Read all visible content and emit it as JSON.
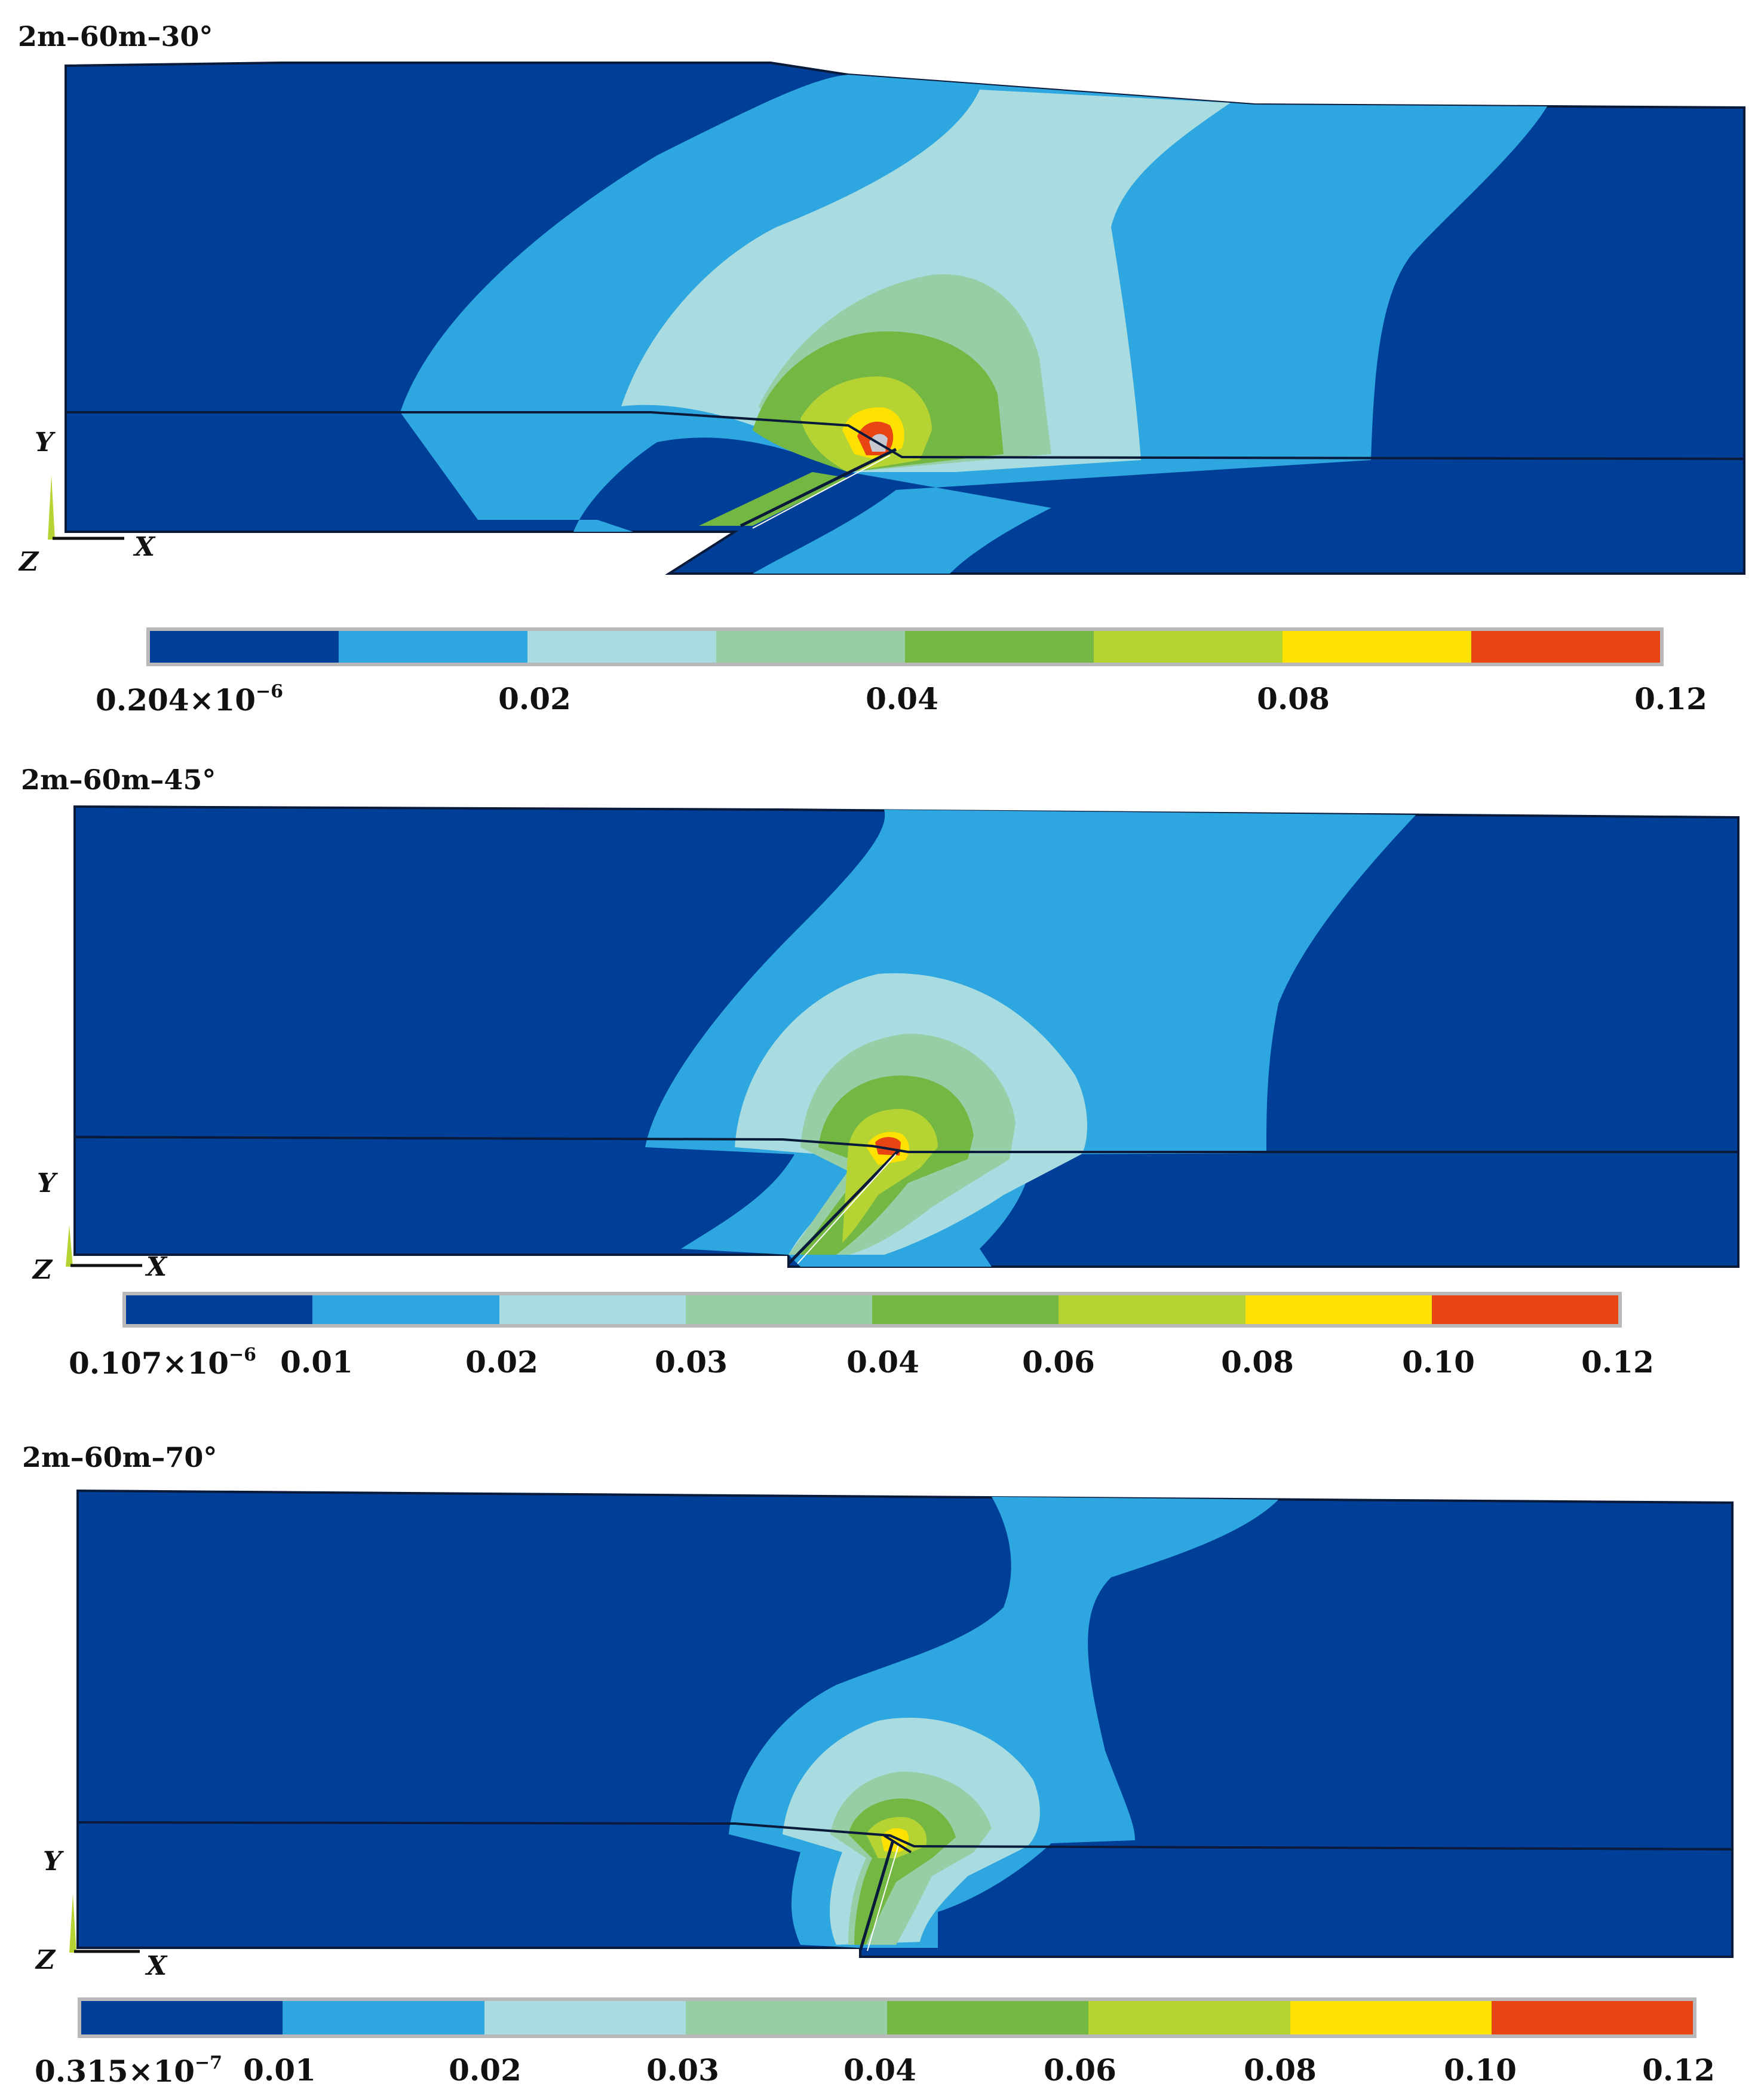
{
  "axes": {
    "y": "Y",
    "z": "Z",
    "x": "X"
  },
  "panels": [
    {
      "title": "2m–60m–30°",
      "colorbar": {
        "colors": [
          "#003f97",
          "#2ea6e0",
          "#a9dce0",
          "#97cea6",
          "#74b843",
          "#b6d334",
          "#fde201",
          "#e94414"
        ],
        "ticks": [
          {
            "base": "0.204×10",
            "exp": "−6"
          },
          {
            "base": "0.02",
            "exp": ""
          },
          {
            "base": "0.04",
            "exp": ""
          },
          {
            "base": "0.08",
            "exp": ""
          },
          {
            "base": "0.12",
            "exp": ""
          }
        ]
      }
    },
    {
      "title": "2m–60m–45°",
      "colorbar": {
        "colors": [
          "#003f97",
          "#2ea6e0",
          "#a9dce0",
          "#97cea6",
          "#74b843",
          "#b6d334",
          "#fde201",
          "#e94414"
        ],
        "ticks": [
          {
            "base": "0.107×10",
            "exp": "−6"
          },
          {
            "base": "0.01",
            "exp": ""
          },
          {
            "base": "0.02",
            "exp": ""
          },
          {
            "base": "0.03",
            "exp": ""
          },
          {
            "base": "0.04",
            "exp": ""
          },
          {
            "base": "0.06",
            "exp": ""
          },
          {
            "base": "0.08",
            "exp": ""
          },
          {
            "base": "0.10",
            "exp": ""
          },
          {
            "base": "0.12",
            "exp": ""
          }
        ]
      }
    },
    {
      "title": "2m–60m–70°",
      "colorbar": {
        "colors": [
          "#003f97",
          "#2ea6e0",
          "#a9dce0",
          "#97cea6",
          "#74b843",
          "#b6d334",
          "#fde201",
          "#e94414"
        ],
        "ticks": [
          {
            "base": "0.315×10",
            "exp": "−7"
          },
          {
            "base": "0.01",
            "exp": ""
          },
          {
            "base": "0.02",
            "exp": ""
          },
          {
            "base": "0.03",
            "exp": ""
          },
          {
            "base": "0.04",
            "exp": ""
          },
          {
            "base": "0.06",
            "exp": ""
          },
          {
            "base": "0.08",
            "exp": ""
          },
          {
            "base": "0.10",
            "exp": ""
          },
          {
            "base": "0.12",
            "exp": ""
          }
        ]
      }
    }
  ]
}
